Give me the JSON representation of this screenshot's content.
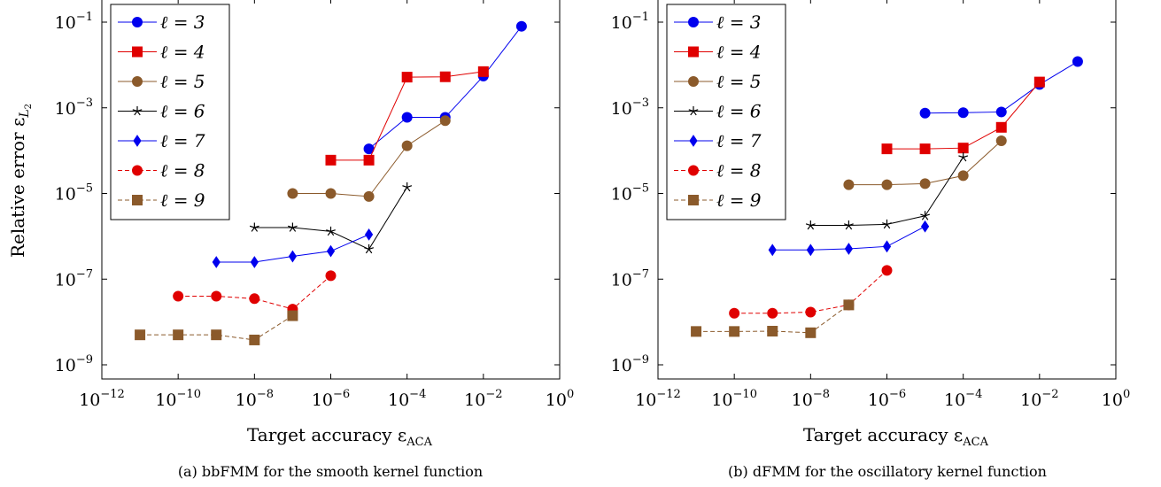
{
  "chart_data": [
    {
      "type": "line",
      "caption": "(a) bbFMM for the smooth kernel function",
      "xlabel": "Target accuracy ε_ACA",
      "ylabel": "Relative error ε_L2",
      "xscale": "log",
      "yscale": "log",
      "xlim": [
        1e-12,
        1
      ],
      "ylim": [
        1e-09,
        0.1
      ],
      "x_ticks": [
        {
          "base": "10",
          "exp": "−12"
        },
        {
          "base": "10",
          "exp": "−10"
        },
        {
          "base": "10",
          "exp": "−8"
        },
        {
          "base": "10",
          "exp": "−6"
        },
        {
          "base": "10",
          "exp": "−4"
        },
        {
          "base": "10",
          "exp": "−2"
        },
        {
          "base": "10",
          "exp": "0"
        }
      ],
      "y_ticks": [
        {
          "base": "10",
          "exp": "−9"
        },
        {
          "base": "10",
          "exp": "−7"
        },
        {
          "base": "10",
          "exp": "−5"
        },
        {
          "base": "10",
          "exp": "−3"
        },
        {
          "base": "10",
          "exp": "−1"
        }
      ],
      "legend_position": "top-left",
      "series": [
        {
          "name": "ℓ = 3",
          "color": "#0000ee",
          "marker": "circle",
          "dash": "solid",
          "x": [
            1e-05,
            0.0001,
            0.001,
            0.01,
            0.1
          ],
          "y": [
            0.00011,
            0.0006,
            0.0006,
            0.0055,
            0.08
          ]
        },
        {
          "name": "ℓ = 4",
          "color": "#e00000",
          "marker": "square",
          "dash": "solid",
          "x": [
            1e-06,
            1e-05,
            0.0001,
            0.001,
            0.01
          ],
          "y": [
            6e-05,
            6e-05,
            0.0052,
            0.0053,
            0.007
          ]
        },
        {
          "name": "ℓ = 5",
          "color": "#8b5a2b",
          "marker": "circle",
          "dash": "solid",
          "x": [
            1e-07,
            1e-06,
            1e-05,
            0.0001,
            0.001
          ],
          "y": [
            1e-05,
            1e-05,
            8.5e-06,
            0.00013,
            0.0005
          ]
        },
        {
          "name": "ℓ = 6",
          "color": "#000000",
          "marker": "star",
          "dash": "solid",
          "x": [
            1e-08,
            1e-07,
            1e-06,
            1e-05,
            0.0001
          ],
          "y": [
            1.6e-06,
            1.6e-06,
            1.3e-06,
            5e-07,
            1.4e-05
          ]
        },
        {
          "name": "ℓ = 7",
          "color": "#0000ee",
          "marker": "diamond",
          "dash": "solid",
          "x": [
            1e-09,
            1e-08,
            1e-07,
            1e-06,
            1e-05
          ],
          "y": [
            2.5e-07,
            2.5e-07,
            3.4e-07,
            4.5e-07,
            1.1e-06
          ]
        },
        {
          "name": "ℓ = 8",
          "color": "#e00000",
          "marker": "circle",
          "dash": "dashed",
          "x": [
            1e-10,
            1e-09,
            1e-08,
            1e-07,
            1e-06
          ],
          "y": [
            4e-08,
            4e-08,
            3.5e-08,
            2e-08,
            1.2e-07
          ]
        },
        {
          "name": "ℓ = 9",
          "color": "#8b5a2b",
          "marker": "square",
          "dash": "dashed",
          "x": [
            1e-11,
            1e-10,
            1e-09,
            1e-08,
            1e-07
          ],
          "y": [
            5e-09,
            5e-09,
            5e-09,
            3.8e-09,
            1.4e-08
          ]
        }
      ]
    },
    {
      "type": "line",
      "caption": "(b) dFMM for the oscillatory kernel function",
      "xlabel": "Target accuracy ε_ACA",
      "ylabel": "",
      "xscale": "log",
      "yscale": "log",
      "xlim": [
        1e-12,
        1
      ],
      "ylim": [
        1e-09,
        0.1
      ],
      "x_ticks": [
        {
          "base": "10",
          "exp": "−12"
        },
        {
          "base": "10",
          "exp": "−10"
        },
        {
          "base": "10",
          "exp": "−8"
        },
        {
          "base": "10",
          "exp": "−6"
        },
        {
          "base": "10",
          "exp": "−4"
        },
        {
          "base": "10",
          "exp": "−2"
        },
        {
          "base": "10",
          "exp": "0"
        }
      ],
      "y_ticks": [
        {
          "base": "10",
          "exp": "−9"
        },
        {
          "base": "10",
          "exp": "−7"
        },
        {
          "base": "10",
          "exp": "−5"
        },
        {
          "base": "10",
          "exp": "−3"
        },
        {
          "base": "10",
          "exp": "−1"
        }
      ],
      "legend_position": "top-left",
      "series": [
        {
          "name": "ℓ = 3",
          "color": "#0000ee",
          "marker": "circle",
          "dash": "solid",
          "x": [
            1e-05,
            0.0001,
            0.001,
            0.01,
            0.1
          ],
          "y": [
            0.00075,
            0.00077,
            0.0008,
            0.0035,
            0.012
          ]
        },
        {
          "name": "ℓ = 4",
          "color": "#e00000",
          "marker": "square",
          "dash": "solid",
          "x": [
            1e-06,
            1e-05,
            0.0001,
            0.001,
            0.01
          ],
          "y": [
            0.00011,
            0.00011,
            0.000115,
            0.00035,
            0.004
          ]
        },
        {
          "name": "ℓ = 5",
          "color": "#8b5a2b",
          "marker": "circle",
          "dash": "solid",
          "x": [
            1e-07,
            1e-06,
            1e-05,
            0.0001,
            0.001
          ],
          "y": [
            1.6e-05,
            1.6e-05,
            1.7e-05,
            2.6e-05,
            0.00017
          ]
        },
        {
          "name": "ℓ = 6",
          "color": "#000000",
          "marker": "star",
          "dash": "solid",
          "x": [
            1e-08,
            1e-07,
            1e-06,
            1e-05,
            0.0001
          ],
          "y": [
            1.8e-06,
            1.8e-06,
            1.9e-06,
            3e-06,
            7e-05
          ]
        },
        {
          "name": "ℓ = 7",
          "color": "#0000ee",
          "marker": "diamond",
          "dash": "solid",
          "x": [
            1e-09,
            1e-08,
            1e-07,
            1e-06,
            1e-05
          ],
          "y": [
            4.8e-07,
            4.8e-07,
            5.1e-07,
            5.8e-07,
            1.7e-06
          ]
        },
        {
          "name": "ℓ = 8",
          "color": "#e00000",
          "marker": "circle",
          "dash": "dashed",
          "x": [
            1e-10,
            1e-09,
            1e-08,
            1e-07,
            1e-06
          ],
          "y": [
            1.6e-08,
            1.6e-08,
            1.7e-08,
            2.5e-08,
            1.6e-07
          ]
        },
        {
          "name": "ℓ = 9",
          "color": "#8b5a2b",
          "marker": "square",
          "dash": "dashed",
          "x": [
            1e-11,
            1e-10,
            1e-09,
            1e-08,
            1e-07
          ],
          "y": [
            6e-09,
            6e-09,
            6.1e-09,
            5.6e-09,
            2.5e-08
          ]
        }
      ]
    }
  ]
}
